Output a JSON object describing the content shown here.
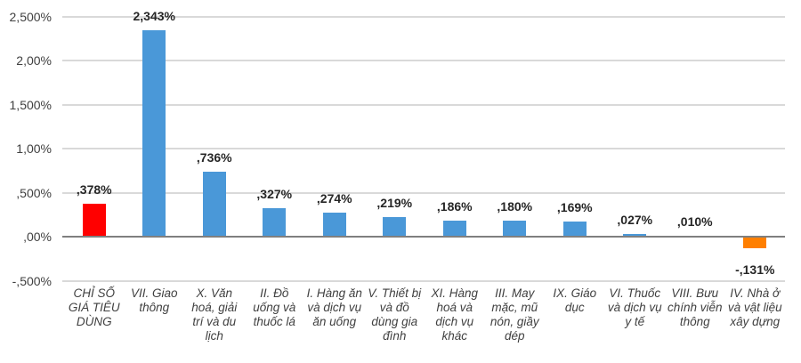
{
  "chart_data": {
    "type": "bar",
    "title": "",
    "xlabel": "",
    "ylabel": "",
    "ylim": [
      -0.5,
      2.5
    ],
    "grid": true,
    "legend": "none",
    "yticks": [
      {
        "value": 2.5,
        "label": "2,500%"
      },
      {
        "value": 2.0,
        "label": "2,00%"
      },
      {
        "value": 1.5,
        "label": "1,500%"
      },
      {
        "value": 1.0,
        "label": "1,00%"
      },
      {
        "value": 0.5,
        "label": ",500%"
      },
      {
        "value": 0.0,
        "label": ",00%"
      },
      {
        "value": -0.5,
        "label": "-,500%"
      }
    ],
    "categories": [
      "CHỈ SỐ GIÁ TIÊU DÙNG",
      "VII. Giao thông",
      "X. Văn hoá, giải trí và du lịch",
      "II. Đồ uống và thuốc lá",
      "I. Hàng ăn và dịch vụ ăn uống",
      "V. Thiết bị và đồ dùng gia đình",
      "XI. Hàng hoá và dịch vụ khác",
      "III. May mặc, mũ nón, giầy dép",
      "IX. Giáo dục",
      "VI. Thuốc và dịch vụ y tế",
      "VIII. Bưu chính viễn thông",
      "IV. Nhà ở và vật liệu xây dựng"
    ],
    "values": [
      0.378,
      2.343,
      0.736,
      0.327,
      0.274,
      0.219,
      0.186,
      0.18,
      0.169,
      0.027,
      0.01,
      -0.131
    ],
    "value_labels": [
      ",378%",
      "2,343%",
      ",736%",
      ",327%",
      ",274%",
      ",219%",
      ",186%",
      ",180%",
      ",169%",
      ",027%",
      ",010%",
      "-,131%"
    ],
    "colors": [
      "#ff0000",
      "#4a98d8",
      "#4a98d8",
      "#4a98d8",
      "#4a98d8",
      "#4a98d8",
      "#4a98d8",
      "#4a98d8",
      "#4a98d8",
      "#4a98d8",
      "#4a98d8",
      "#ff7f00"
    ]
  }
}
